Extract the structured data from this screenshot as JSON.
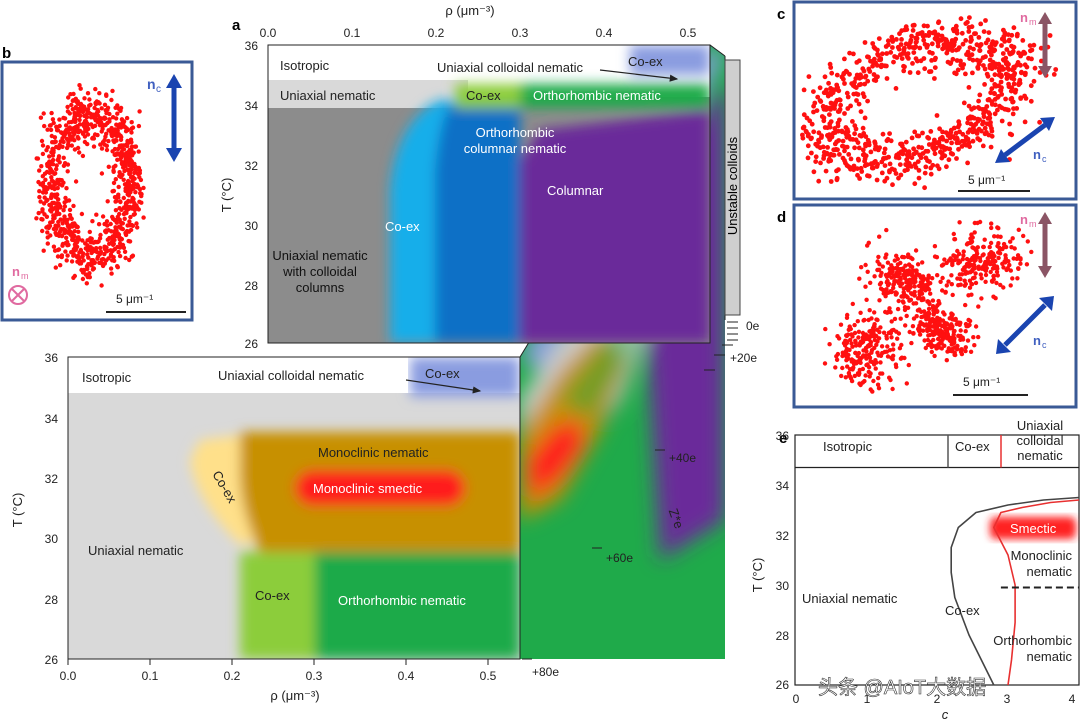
{
  "panels": {
    "a": "a",
    "b": "b",
    "c": "c",
    "d": "d",
    "e": "e"
  },
  "panel_a": {
    "top_face": {
      "xlabel": "ρ (μm⁻³)",
      "ylabel": "T (°C)",
      "xticks": [
        "0.0",
        "0.1",
        "0.2",
        "0.3",
        "0.4",
        "0.5"
      ],
      "yticks": [
        "36",
        "34",
        "32",
        "30",
        "28",
        "26"
      ],
      "regions": {
        "isotropic": "Isotropic",
        "uniaxial_colloidal_nematic": "Uniaxial colloidal nematic",
        "coex_top": "Co-ex",
        "uniaxial_nematic": "Uniaxial  nematic",
        "coex_mid": "Co-ex",
        "orthorhombic_nematic": "Orthorhombic nematic",
        "orthorhombic_columnar_1": "Orthorhombic",
        "orthorhombic_columnar_2": "columnar nematic",
        "columnar": "Columnar",
        "coex_low": "Co-ex",
        "uniaxial_columns_1": "Uniaxial nematic",
        "uniaxial_columns_2": "with colloidal",
        "uniaxial_columns_3": "columns",
        "unstable": "Unstable colloids"
      }
    },
    "front_face": {
      "xlabel": "ρ (μm⁻³)",
      "ylabel": "T (°C)",
      "xticks": [
        "0.0",
        "0.1",
        "0.2",
        "0.3",
        "0.4",
        "0.5"
      ],
      "yticks": [
        "36",
        "34",
        "32",
        "30",
        "28",
        "26"
      ],
      "regions": {
        "isotropic": "Isotropic",
        "uniaxial_colloidal_nematic": "Uniaxial colloidal nematic",
        "coex_top": "Co-ex",
        "monoclinic_nematic": "Monoclinic nematic",
        "monoclinic_smectic": "Monoclinic smectic",
        "coex_diag": "Co-ex",
        "uniaxial_nematic": "Uniaxial nematic",
        "coex_low": "Co-ex",
        "orthorhombic_nematic": "Orthorhombic nematic"
      }
    },
    "z_axis": {
      "label": "Z*e",
      "ticks": [
        "0e",
        "+20e",
        "+40e",
        "+60e",
        "+80e"
      ]
    }
  },
  "panel_b": {
    "nc": "n",
    "nc_sub": "c",
    "nm": "n",
    "nm_sub": "m",
    "scale": "5 μm⁻¹"
  },
  "panel_c": {
    "nm": "n",
    "nm_sub": "m",
    "nc": "n",
    "nc_sub": "c",
    "scale": "5 μm⁻¹"
  },
  "panel_d": {
    "nm": "n",
    "nm_sub": "m",
    "nc": "n",
    "nc_sub": "c",
    "scale": "5 μm⁻¹"
  },
  "panel_e": {
    "xlabel": "c",
    "ylabel": "T (°C)",
    "xticks": [
      "0",
      "1",
      "2",
      "3",
      "4"
    ],
    "yticks": [
      "36",
      "34",
      "32",
      "30",
      "28",
      "26"
    ],
    "top_labels": {
      "isotropic": "Isotropic",
      "coex": "Co-ex",
      "uniaxial_1": "Uniaxial",
      "uniaxial_2": "colloidal",
      "uniaxial_3": "nematic"
    },
    "labels": {
      "smectic": "Smectic",
      "monoclinic_1": "Monoclinic",
      "monoclinic_2": "nematic",
      "uniaxial_nematic": "Uniaxial nematic",
      "coex": "Co-ex",
      "orthorhombic_1": "Orthorhombic",
      "orthorhombic_2": "nematic"
    }
  },
  "watermark": "头条 @AIoT大数据",
  "colors": {
    "isotropic": "#ffffff",
    "uniaxial_nematic": "#d9d9d9",
    "uniaxial_columns": "#8c8c8c",
    "coex_blue": "#16aeea",
    "orthorhombic_columnar": "#0f6fc6",
    "columnar": "#6a2a9a",
    "orthorhombic_nematic": "#1faa4a",
    "coex_green": "#8ccd3a",
    "colloidal_nematic": "#8a9ce0",
    "monoclinic_nematic": "#c79000",
    "monoclinic_smectic": "#ff1a1a",
    "coex_yellow": "#ffe08a",
    "points": "#ff1010",
    "nc_arrow": "#1a44b0",
    "nm_arrow": "#8b5565",
    "frame": "#3a5a96"
  },
  "chart_data": [
    {
      "type": "scatter",
      "panel": "e",
      "xlabel": "c",
      "ylabel": "T (°C)",
      "xlim": [
        0,
        4
      ],
      "ylim": [
        26,
        36
      ],
      "series": [
        {
          "values_x": [
            2.8,
            2.45,
            2.25,
            2.2,
            2.2,
            2.3,
            2.55,
            3.0,
            3.5,
            4.0
          ],
          "values_y": [
            26,
            28,
            29.5,
            30.5,
            31.5,
            32.3,
            32.9,
            33.2,
            33.4,
            33.5
          ]
        },
        {
          "values_x": [
            3.0,
            3.05,
            3.1,
            3.1,
            3.0,
            2.8,
            2.9,
            3.2,
            3.6,
            4.0
          ],
          "values_y": [
            26,
            27,
            28.5,
            30,
            31.2,
            32.3,
            32.9,
            33.1,
            33.3,
            33.4
          ]
        }
      ],
      "reference_lines": [
        {
          "y": 29.9,
          "x_from": 2.9,
          "x_to": 4.0,
          "style": "dashed"
        },
        {
          "y": 34.7,
          "x_from": 0,
          "x_to": 4.0,
          "style": "solid"
        }
      ]
    }
  ]
}
